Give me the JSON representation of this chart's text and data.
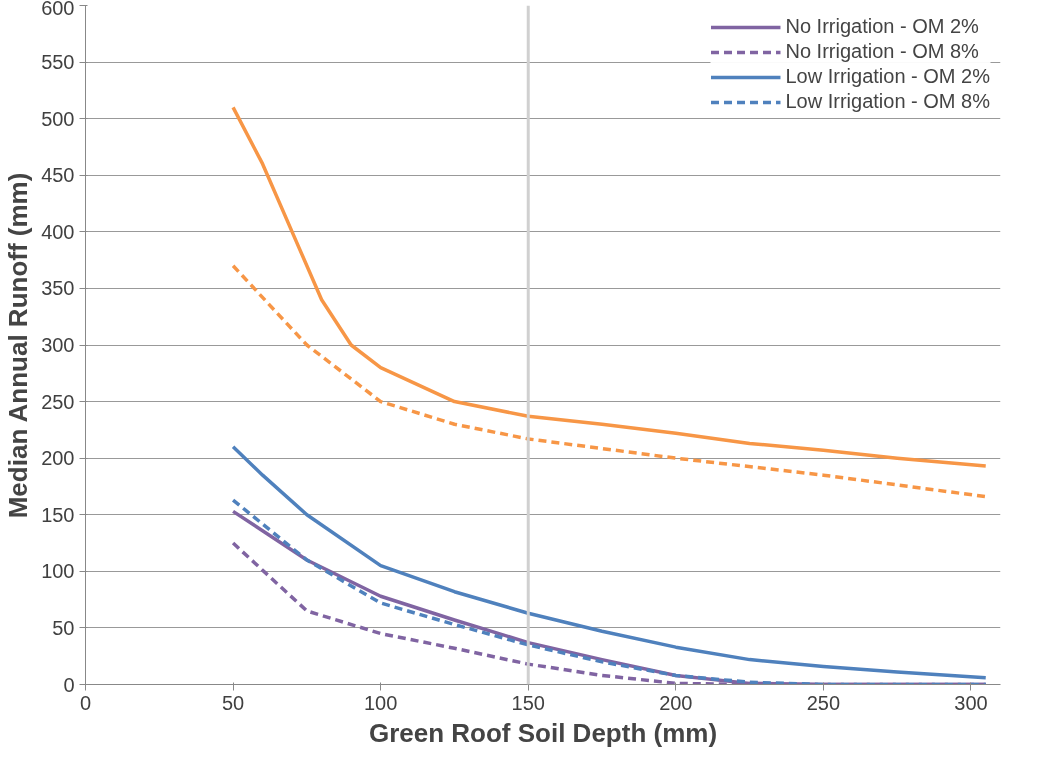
{
  "chart_data": {
    "type": "line",
    "xlabel": "Green Roof Soil Depth (mm)",
    "ylabel": "Median Annual Runoff (mm)",
    "xlim": [
      0,
      310
    ],
    "ylim": [
      0,
      600
    ],
    "xticks": [
      0,
      50,
      100,
      150,
      200,
      250,
      300
    ],
    "yticks": [
      0,
      50,
      100,
      150,
      200,
      250,
      300,
      350,
      400,
      450,
      500,
      550,
      600
    ],
    "grid": "y",
    "legend": "top right",
    "ref_lines": [
      {
        "axis": "x",
        "value": 150,
        "color": "#d0d0d0"
      }
    ],
    "series": [
      {
        "name": "No Irrigation - OM 2%",
        "color": "#8064a2",
        "line_style": "solid",
        "x": [
          50,
          75,
          100,
          125,
          150,
          175,
          200,
          225,
          250,
          305
        ],
        "values": [
          153,
          110,
          78,
          57,
          37,
          22,
          8,
          1,
          0,
          0
        ]
      },
      {
        "name": "No Irrigation - OM 8%",
        "color": "#8064a2",
        "line_style": "dashed",
        "x": [
          50,
          75,
          100,
          125,
          150,
          175,
          200,
          225,
          305
        ],
        "values": [
          125,
          65,
          45,
          32,
          18,
          8,
          1,
          0,
          0
        ]
      },
      {
        "name": "Low Irrigation - OM 2%",
        "color": "#4f81bd",
        "line_style": "solid",
        "x": [
          50,
          60,
          75,
          100,
          125,
          150,
          175,
          200,
          225,
          250,
          275,
          305
        ],
        "values": [
          210,
          185,
          150,
          105,
          82,
          63,
          47,
          33,
          22,
          16,
          11,
          6
        ]
      },
      {
        "name": "Low Irrigation - OM 8%",
        "color": "#4f81bd",
        "line_style": "dashed",
        "x": [
          50,
          75,
          100,
          125,
          150,
          175,
          200,
          225,
          250,
          305
        ],
        "values": [
          163,
          110,
          72,
          53,
          35,
          20,
          8,
          2,
          0,
          0
        ]
      },
      {
        "color": "#f79646",
        "line_style": "solid",
        "x": [
          50,
          60,
          70,
          80,
          90,
          100,
          125,
          150,
          175,
          200,
          225,
          250,
          275,
          305
        ],
        "values": [
          510,
          460,
          400,
          340,
          300,
          280,
          250,
          237,
          230,
          222,
          213,
          207,
          200,
          193
        ]
      },
      {
        "color": "#f79646",
        "line_style": "dashed",
        "x": [
          50,
          75,
          100,
          125,
          150,
          200,
          250,
          305
        ],
        "values": [
          370,
          300,
          250,
          230,
          217,
          200,
          185,
          166
        ]
      }
    ]
  }
}
